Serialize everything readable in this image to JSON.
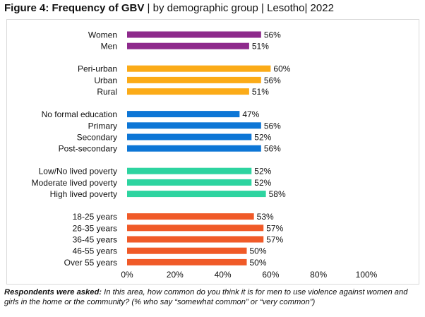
{
  "figure": {
    "label": "Figure 4: Frequency of GBV",
    "rest": " | by demographic group | Lesotho| 2022"
  },
  "footnote": {
    "lead": "Respondents were asked:",
    "text": " In this area, how common do you think it is for men to use violence against women and girls in the home or the community? (% who say “somewhat common” or “very common”)"
  },
  "chart_data": {
    "type": "bar",
    "orientation": "horizontal",
    "title": "",
    "xlim": [
      0,
      100
    ],
    "x_ticks": [
      "0%",
      "20%",
      "40%",
      "60%",
      "80%",
      "100%"
    ],
    "groups": [
      {
        "color": "#8e2a8c",
        "bars": [
          {
            "label": "Women",
            "value": 56
          },
          {
            "label": "Men",
            "value": 51
          }
        ]
      },
      {
        "color": "#fbab18",
        "bars": [
          {
            "label": "Peri-urban",
            "value": 60
          },
          {
            "label": "Urban",
            "value": 56
          },
          {
            "label": "Rural",
            "value": 51
          }
        ]
      },
      {
        "color": "#0d76d6",
        "bars": [
          {
            "label": "No formal education",
            "value": 47
          },
          {
            "label": "Primary",
            "value": 56
          },
          {
            "label": "Secondary",
            "value": 52
          },
          {
            "label": "Post-secondary",
            "value": 56
          }
        ]
      },
      {
        "color": "#2dd4a0",
        "bars": [
          {
            "label": "Low/No lived poverty",
            "value": 52
          },
          {
            "label": "Moderate lived poverty",
            "value": 52
          },
          {
            "label": "High lived poverty",
            "value": 58
          }
        ]
      },
      {
        "color": "#f05a28",
        "bars": [
          {
            "label": "18-25 years",
            "value": 53
          },
          {
            "label": "26-35 years",
            "value": 57
          },
          {
            "label": "36-45 years",
            "value": 57
          },
          {
            "label": "46-55 years",
            "value": 50
          },
          {
            "label": "Over 55 years",
            "value": 50
          }
        ]
      }
    ]
  }
}
